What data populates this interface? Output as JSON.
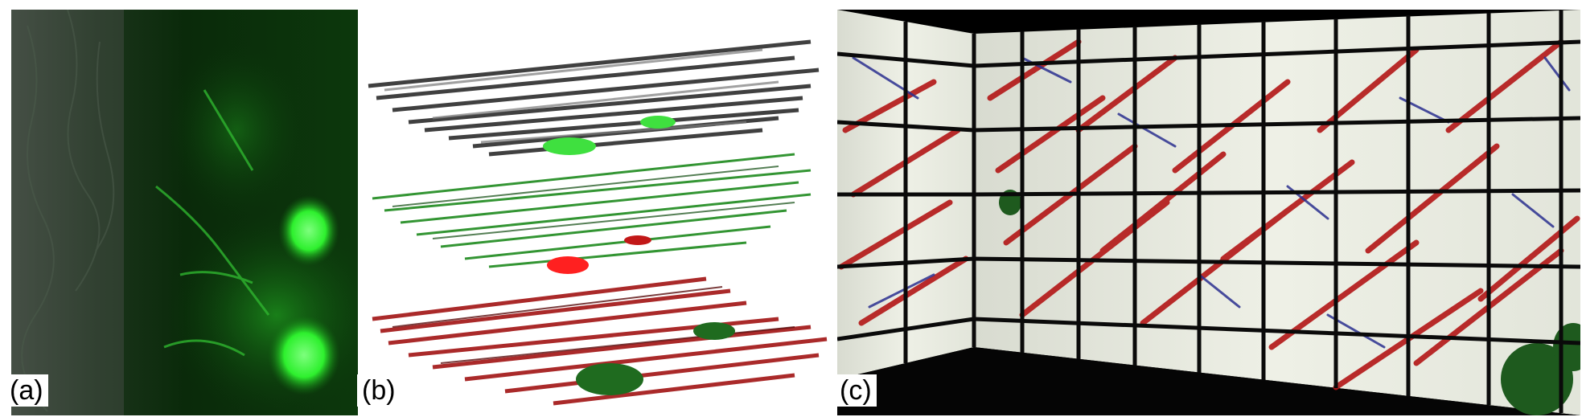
{
  "panels": [
    {
      "id": "a",
      "label": "(a)",
      "kind": "fluorescence-micrograph",
      "color": "#2bd12b"
    },
    {
      "id": "b",
      "label": "(b)",
      "kind": "stacked-3d-layer-renderings",
      "layers": [
        "gray",
        "green",
        "red"
      ],
      "colors": {
        "gray": "#3a3a3a",
        "green": "#1e8a1e",
        "red": "#a31818",
        "blob_green": "#3fe03f",
        "blob_red": "#ff2020"
      }
    },
    {
      "id": "c",
      "label": "(c)",
      "kind": "tiled-display-wall",
      "colors": {
        "fibers_red": "#b31616",
        "fibers_blue": "#2a2f8f",
        "tile_bg": "#e6e8e0",
        "grid": "#0a0a0a"
      }
    }
  ]
}
